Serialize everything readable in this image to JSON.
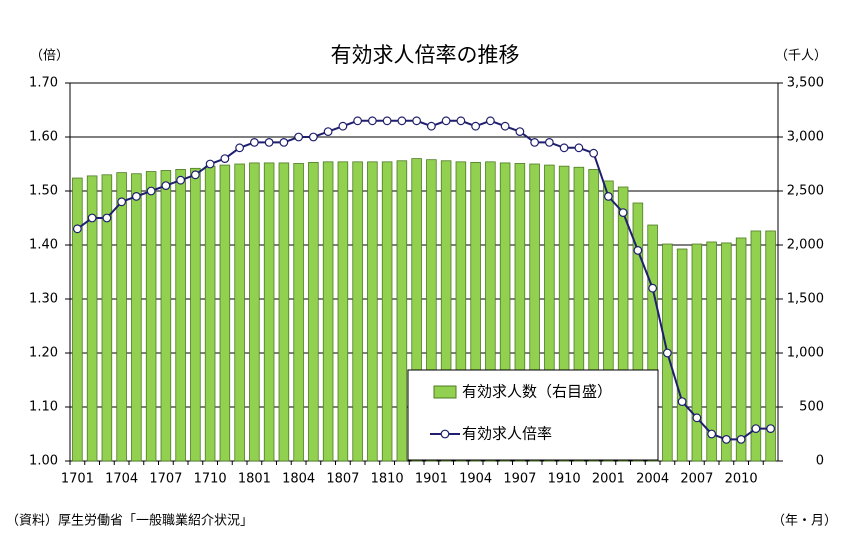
{
  "chart_data": {
    "type": "combo",
    "title": "有効求人倍率の推移",
    "y_axis_label": "（倍）",
    "y2_axis_label": "（千人）",
    "x_axis_label": "（年・月）",
    "source": "（資料）厚生労働省「一般職業紹介状況」",
    "categories": [
      "1701",
      null,
      null,
      "1704",
      null,
      null,
      "1707",
      null,
      null,
      "1710",
      null,
      null,
      "1801",
      null,
      null,
      "1804",
      null,
      null,
      "1807",
      null,
      null,
      "1810",
      null,
      null,
      "1901",
      null,
      null,
      "1904",
      null,
      null,
      "1907",
      null,
      null,
      "1910",
      null,
      null,
      "2001",
      null,
      null,
      "2004",
      null,
      null,
      "2007",
      null,
      null,
      "2010",
      null,
      null
    ],
    "series": [
      {
        "name": "有効求人数（右目盛）",
        "type": "bar",
        "axis": "y2",
        "color": "#92d050",
        "values": [
          2620,
          2640,
          2650,
          2670,
          2660,
          2680,
          2690,
          2700,
          2710,
          2730,
          2740,
          2750,
          2760,
          2760,
          2760,
          2755,
          2765,
          2770,
          2770,
          2770,
          2770,
          2770,
          2780,
          2800,
          2790,
          2780,
          2770,
          2765,
          2770,
          2760,
          2755,
          2750,
          2740,
          2730,
          2720,
          2700,
          2593,
          2537,
          2389,
          2185,
          2009,
          1963,
          2009,
          2028,
          2019,
          2065,
          2130,
          2130
        ]
      },
      {
        "name": "有効求人倍率",
        "type": "line",
        "axis": "y",
        "color": "#1f1f6e",
        "values": [
          1.43,
          1.45,
          1.45,
          1.48,
          1.49,
          1.5,
          1.51,
          1.52,
          1.53,
          1.55,
          1.56,
          1.58,
          1.59,
          1.59,
          1.59,
          1.6,
          1.6,
          1.61,
          1.62,
          1.63,
          1.63,
          1.63,
          1.63,
          1.63,
          1.62,
          1.63,
          1.63,
          1.62,
          1.63,
          1.62,
          1.61,
          1.59,
          1.59,
          1.58,
          1.58,
          1.57,
          1.49,
          1.46,
          1.39,
          1.32,
          1.2,
          1.11,
          1.08,
          1.05,
          1.04,
          1.04,
          1.06,
          1.06
        ]
      }
    ],
    "ylim": [
      1.0,
      1.7
    ],
    "yticks": [
      {
        "value": 1.0,
        "label": "1.00"
      },
      {
        "value": 1.1,
        "label": "1.10"
      },
      {
        "value": 1.2,
        "label": "1.20"
      },
      {
        "value": 1.3,
        "label": "1.30"
      },
      {
        "value": 1.4,
        "label": "1.40"
      },
      {
        "value": 1.5,
        "label": "1.50"
      },
      {
        "value": 1.6,
        "label": "1.60"
      },
      {
        "value": 1.7,
        "label": "1.70"
      }
    ],
    "y2lim": [
      0,
      3500
    ],
    "y2ticks": [
      0,
      500,
      {
        "value": 1000,
        "label": "1,000"
      },
      {
        "value": 1500,
        "label": "1,500"
      },
      {
        "value": 2000,
        "label": "2,000"
      },
      {
        "value": 2500,
        "label": "2,500"
      },
      {
        "value": 3000,
        "label": "3,000"
      },
      {
        "value": 3500,
        "label": "3,500"
      }
    ],
    "grid": true
  }
}
